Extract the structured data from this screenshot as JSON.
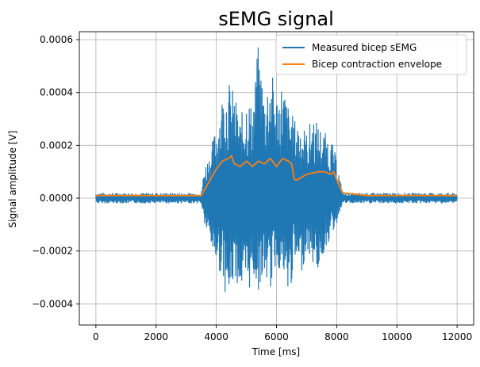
{
  "chart_data": {
    "type": "line",
    "title": "sEMG signal",
    "xlabel": "Time [ms]",
    "ylabel": "Signal amplitude [V]",
    "xlim": [
      -550,
      12550
    ],
    "ylim": [
      -0.00048,
      0.00063
    ],
    "x_ticks": [
      0,
      2000,
      4000,
      6000,
      8000,
      10000,
      12000
    ],
    "x_tick_labels": [
      "0",
      "2000",
      "4000",
      "6000",
      "8000",
      "10000",
      "12000"
    ],
    "y_ticks": [
      -0.0004,
      -0.0002,
      0.0,
      0.0002,
      0.0004,
      0.0006
    ],
    "y_tick_labels": [
      "−0.0004",
      "−0.0002",
      "0.0000",
      "0.0002",
      "0.0004",
      "0.0006"
    ],
    "grid": true,
    "legend_position": "top-right",
    "series": [
      {
        "name": "Measured bicep sEMG",
        "color": "#1f77b4",
        "kind": "band",
        "x": [
          0,
          1000,
          2000,
          3000,
          3500,
          3600,
          3800,
          4000,
          4200,
          4400,
          4600,
          4800,
          5000,
          5200,
          5400,
          5600,
          5800,
          6000,
          6200,
          6400,
          6600,
          6800,
          7000,
          7200,
          7400,
          7600,
          7800,
          8000,
          8100,
          8200,
          8400,
          9000,
          10000,
          11000,
          12000
        ],
        "upper": [
          2e-05,
          2e-05,
          2e-05,
          2e-05,
          2e-05,
          0.00012,
          0.00018,
          0.00028,
          0.0004,
          0.00045,
          0.0004,
          0.0003,
          0.0004,
          0.00035,
          0.00059,
          0.0004,
          0.0005,
          0.0004,
          0.00045,
          0.00035,
          0.0003,
          0.0003,
          0.00025,
          0.00032,
          0.00028,
          0.00025,
          0.00023,
          0.00015,
          8e-05,
          2e-05,
          2e-05,
          2e-05,
          2e-05,
          2e-05,
          2e-05
        ],
        "lower": [
          -2e-05,
          -2e-05,
          -2e-05,
          -2e-05,
          -2e-05,
          -0.0001,
          -0.00018,
          -0.00025,
          -0.0003,
          -0.00042,
          -0.0003,
          -0.00035,
          -0.0004,
          -0.0003,
          -0.00035,
          -0.0003,
          -0.00035,
          -0.00025,
          -0.0003,
          -0.0004,
          -0.00025,
          -0.0003,
          -0.0002,
          -0.00025,
          -0.00028,
          -0.0002,
          -0.00015,
          -0.0001,
          -5e-05,
          -2e-05,
          -2e-05,
          -2e-05,
          -2e-05,
          -2e-05,
          -2e-05
        ]
      },
      {
        "name": "Bicep contraction envelope",
        "color": "#ff7f0e",
        "kind": "line",
        "x": [
          0,
          3000,
          3500,
          3600,
          3800,
          4000,
          4200,
          4400,
          4500,
          4600,
          4800,
          5000,
          5200,
          5400,
          5600,
          5800,
          6000,
          6200,
          6400,
          6500,
          6600,
          6700,
          7000,
          7400,
          7600,
          7800,
          7900,
          8000,
          8200,
          9000,
          10000,
          12000
        ],
        "y": [
          1e-05,
          1e-05,
          1e-05,
          3e-05,
          7e-05,
          0.00011,
          0.00014,
          0.00015,
          0.00016,
          0.00013,
          0.00012,
          0.00014,
          0.00012,
          0.00014,
          0.00013,
          0.00015,
          0.00012,
          0.00015,
          0.00014,
          0.00013,
          7e-05,
          7e-05,
          9e-05,
          0.0001,
          0.0001,
          9e-05,
          0.0001,
          7e-05,
          2e-05,
          1e-05,
          1e-05,
          1e-05
        ]
      }
    ]
  }
}
